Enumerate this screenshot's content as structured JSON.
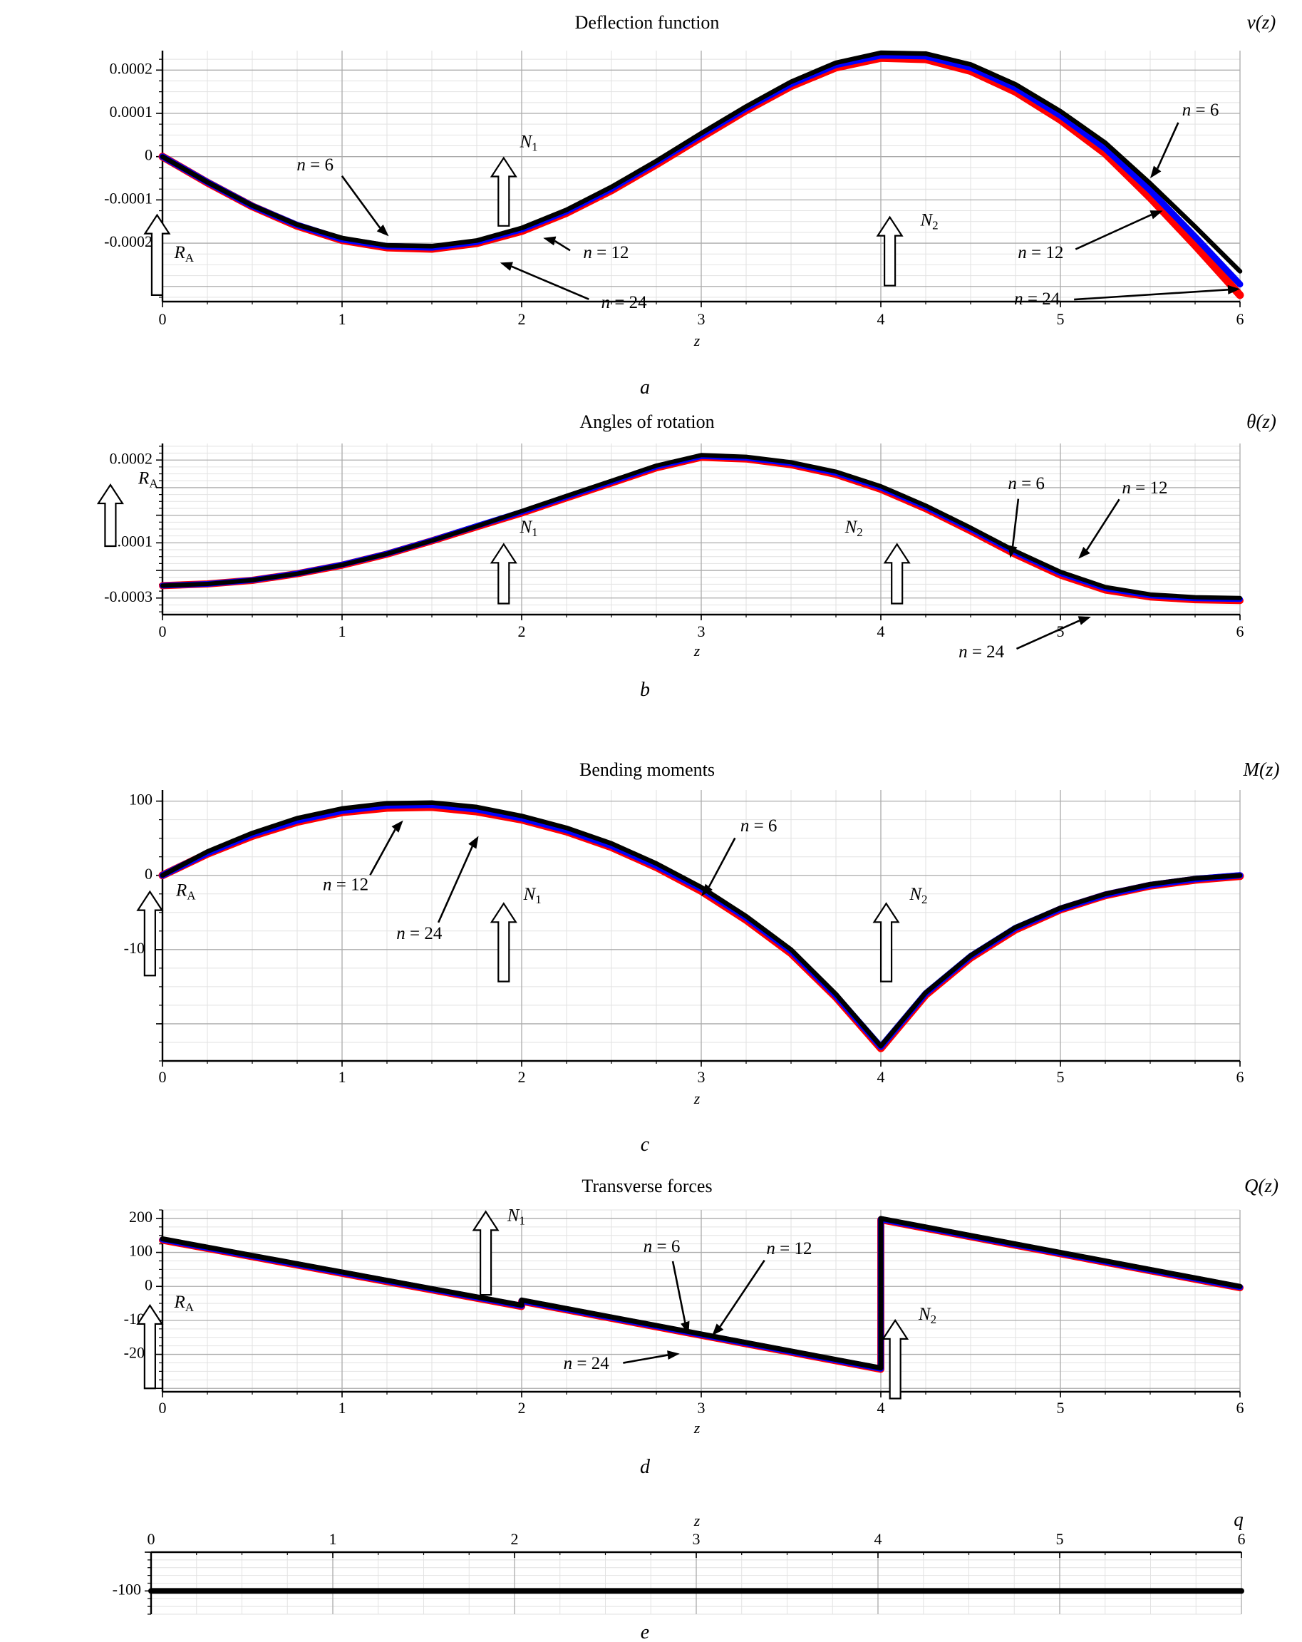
{
  "page": {
    "background": "#ffffff"
  },
  "chart_data": [
    {
      "id": "a",
      "type": "line",
      "title": "Deflection function",
      "fn_label": "v(z)",
      "sub_label": "a",
      "xlabel": "z",
      "xlim": [
        0,
        6
      ],
      "ylim": [
        -0.000335,
        0.000245
      ],
      "xticks": [
        0,
        1,
        2,
        3,
        4,
        5,
        6
      ],
      "yticks": [
        {
          "v": 0.0002,
          "label": "0.0002"
        },
        {
          "v": 0.0001,
          "label": "0.0001"
        },
        {
          "v": 0,
          "label": "0"
        },
        {
          "v": -0.0001,
          "label": "-0.0001"
        },
        {
          "v": -0.0002,
          "label": "-0.0002"
        }
      ],
      "grid": {
        "x_minor": 0.25,
        "x_major": 1,
        "y_minor": 2.5e-05,
        "y_major": 0.0001
      },
      "x": [
        0,
        0.25,
        0.5,
        0.75,
        1,
        1.25,
        1.5,
        1.75,
        2,
        2.25,
        2.5,
        2.75,
        3,
        3.25,
        3.5,
        3.75,
        4,
        4.25,
        4.5,
        4.75,
        5,
        5.25,
        5.5,
        5.75,
        6
      ],
      "series": [
        {
          "name": "n = 24",
          "color": "#ff0000",
          "width": 11,
          "y": [
            0,
            -6e-05,
            -0.000115,
            -0.00016,
            -0.000193,
            -0.00021,
            -0.000213,
            -0.0002,
            -0.000172,
            -0.00013,
            -7.8e-05,
            -1.8e-05,
            4.5e-05,
            0.000107,
            0.000163,
            0.000206,
            0.000228,
            0.000225,
            0.000198,
            0.00015,
            8.5e-05,
            7e-06,
            -9.5e-05,
            -0.000205,
            -0.00032
          ]
        },
        {
          "name": "n = 12",
          "color": "#0000ff",
          "width": 9,
          "y": [
            0,
            -5.9e-05,
            -0.000114,
            -0.000158,
            -0.000191,
            -0.000207,
            -0.00021,
            -0.000197,
            -0.000168,
            -0.000126,
            -7.4e-05,
            -1.3e-05,
            5e-05,
            0.000112,
            0.000168,
            0.000212,
            0.000234,
            0.000232,
            0.000206,
            0.000159,
            9.5e-05,
            1.9e-05,
            -7.8e-05,
            -0.000185,
            -0.000295
          ]
        },
        {
          "name": "n = 6",
          "color": "#000000",
          "width": 6.5,
          "y": [
            0,
            -5.9e-05,
            -0.000113,
            -0.000157,
            -0.000188,
            -0.000205,
            -0.000207,
            -0.000194,
            -0.000165,
            -0.000123,
            -7e-05,
            -1e-05,
            5.4e-05,
            0.000116,
            0.000173,
            0.000217,
            0.00024,
            0.000238,
            0.000213,
            0.000167,
            0.000105,
            3.2e-05,
            -6.2e-05,
            -0.000162,
            -0.000265
          ]
        }
      ],
      "force_arrows": [
        {
          "base": "R",
          "sub": "A",
          "x": -0.03,
          "y_bottom": -0.00032,
          "y_top": -0.000135,
          "lx": 0.12,
          "ly": -0.000225
        },
        {
          "base": "N",
          "sub": "1",
          "x": 1.9,
          "y_bottom": -0.00016,
          "y_top": -3e-06,
          "lx": 2.04,
          "ly": 3.2e-05
        },
        {
          "base": "N",
          "sub": "2",
          "x": 4.05,
          "y_bottom": -0.000298,
          "y_top": -0.00014,
          "lx": 4.27,
          "ly": -0.00015
        }
      ],
      "annotations": [
        {
          "text": "n = 6",
          "tx": 0.85,
          "ty": -2.2e-05,
          "ax": 1.26,
          "ay": -0.000184
        },
        {
          "text": "n = 12",
          "tx": 2.47,
          "ty": -0.000225,
          "ax": 2.12,
          "ay": -0.000188
        },
        {
          "text": "n = 24",
          "tx": 2.57,
          "ty": -0.00034,
          "ax": 1.88,
          "ay": -0.000245
        },
        {
          "text": "n = 6",
          "tx": 5.78,
          "ty": 0.000105,
          "ax": 5.5,
          "ay": -5e-05
        },
        {
          "text": "n = 12",
          "tx": 4.89,
          "ty": -0.000225,
          "ax": 5.57,
          "ay": -0.000125
        },
        {
          "text": "n = 24",
          "tx": 4.87,
          "ty": -0.000332,
          "ax": 6.0,
          "ay": -0.000306
        }
      ]
    },
    {
      "id": "b",
      "type": "line",
      "title": "Angles of rotation",
      "fn_label": "θ(z)",
      "sub_label": "b",
      "xlabel": "z",
      "xlim": [
        0,
        6
      ],
      "ylim": [
        -0.00036,
        0.00026
      ],
      "xticks": [
        0,
        1,
        2,
        3,
        4,
        5,
        6
      ],
      "yticks": [
        {
          "v": 0.0002,
          "label": "0.0002"
        },
        {
          "v": -0.0001,
          "label": "-0.0001"
        },
        {
          "v": -0.0003,
          "label": "-0.0003"
        }
      ],
      "grid": {
        "x_minor": 0.25,
        "x_major": 1,
        "y_minor": 2.5e-05,
        "y_major": 0.0001
      },
      "x": [
        0,
        0.25,
        0.5,
        0.75,
        1,
        1.25,
        1.5,
        1.75,
        2,
        2.25,
        2.5,
        2.75,
        3,
        3.25,
        3.5,
        3.75,
        4,
        4.25,
        4.5,
        4.75,
        5,
        5.25,
        5.5,
        5.75,
        6
      ],
      "series": [
        {
          "name": "n = 24",
          "color": "#ff0000",
          "width": 10,
          "y": [
            -0.000255,
            -0.000249,
            -0.000236,
            -0.000212,
            -0.000181,
            -0.000141,
            -9.3e-05,
            -4.2e-05,
            8e-06,
            6.3e-05,
            0.000117,
            0.000172,
            0.00021,
            0.000204,
            0.000183,
            0.000148,
            9.4e-05,
            2.4e-05,
            -5.7e-05,
            -0.000142,
            -0.000217,
            -0.000271,
            -0.000296,
            -0.000306,
            -0.000309
          ]
        },
        {
          "name": "n = 12",
          "color": "#0000ff",
          "width": 8,
          "y": [
            -0.000255,
            -0.000249,
            -0.000235,
            -0.000211,
            -0.000179,
            -0.000139,
            -9.1e-05,
            -3.9e-05,
            1.2e-05,
            6.7e-05,
            0.000121,
            0.000176,
            0.000214,
            0.000208,
            0.000188,
            0.000153,
            0.0001,
            3e-05,
            -5e-05,
            -0.000135,
            -0.00021,
            -0.000265,
            -0.000291,
            -0.000301,
            -0.000304
          ]
        },
        {
          "name": "n = 6",
          "color": "#000000",
          "width": 6,
          "y": [
            -0.000255,
            -0.000249,
            -0.000235,
            -0.000212,
            -0.00018,
            -0.00014,
            -9.2e-05,
            -4e-05,
            1.5e-05,
            7e-05,
            0.000125,
            0.00018,
            0.000218,
            0.000212,
            0.000192,
            0.000158,
            0.000105,
            3.5e-05,
            -4.5e-05,
            -0.00013,
            -0.000205,
            -0.00026,
            -0.000287,
            -0.000297,
            -0.0003
          ]
        }
      ],
      "force_arrows": [
        {
          "base": "R",
          "sub": "A",
          "x": -0.29,
          "y_bottom": -0.000112,
          "y_top": 0.00011,
          "lx": -0.08,
          "ly": 0.00013
        },
        {
          "base": "N",
          "sub": "1",
          "x": 1.9,
          "y_bottom": -0.00032,
          "y_top": -0.000105,
          "lx": 2.04,
          "ly": -4.8e-05
        },
        {
          "base": "N",
          "sub": "2",
          "x": 4.09,
          "y_bottom": -0.00032,
          "y_top": -0.000105,
          "lx": 3.85,
          "ly": -4.8e-05
        }
      ],
      "annotations": [
        {
          "text": "n = 6",
          "tx": 4.81,
          "ty": 0.00011,
          "ax": 4.72,
          "ay": -0.000155
        },
        {
          "text": "n = 12",
          "tx": 5.47,
          "ty": 9.5e-05,
          "ax": 5.1,
          "ay": -0.000158
        },
        {
          "text": "n = 24",
          "tx": 4.56,
          "ty": -0.0005,
          "ax": 5.17,
          "ay": -0.000368
        }
      ]
    },
    {
      "id": "c",
      "type": "line",
      "title": "Bending moments",
      "fn_label": "M(z)",
      "sub_label": "c",
      "xlabel": "z",
      "xlim": [
        0,
        6
      ],
      "ylim": [
        -250,
        115
      ],
      "xticks": [
        0,
        1,
        2,
        3,
        4,
        5,
        6
      ],
      "yticks": [
        {
          "v": 100,
          "label": "100"
        },
        {
          "v": 0,
          "label": "0"
        },
        {
          "v": -100,
          "label": "-100"
        }
      ],
      "grid": {
        "x_minor": 0.25,
        "x_major": 1,
        "y_minor": 25,
        "y_major": 100
      },
      "x": [
        0,
        0.25,
        0.5,
        0.75,
        1,
        1.25,
        1.5,
        1.75,
        2,
        2.25,
        2.5,
        2.75,
        3,
        3.25,
        3.5,
        3.75,
        4,
        4.25,
        4.5,
        4.75,
        5,
        5.25,
        5.5,
        5.75,
        6
      ],
      "series": [
        {
          "name": "n = 24",
          "color": "#ff0000",
          "width": 11,
          "y": [
            0,
            29,
            53,
            72,
            85,
            91,
            92,
            86,
            75,
            59,
            38,
            11,
            -21,
            -60,
            -105,
            -164,
            -233,
            -161,
            -111,
            -73,
            -46,
            -27,
            -14,
            -6,
            -1
          ]
        },
        {
          "name": "n = 12",
          "color": "#0000ff",
          "width": 9,
          "y": [
            0,
            30,
            55,
            74,
            87,
            94,
            95,
            89,
            77,
            61,
            40,
            13,
            -18,
            -57,
            -102,
            -162,
            -231,
            -159,
            -109,
            -71,
            -45,
            -26,
            -13,
            -5,
            0
          ]
        },
        {
          "name": "n = 6",
          "color": "#000000",
          "width": 6.5,
          "y": [
            0,
            32,
            57,
            77,
            90,
            97,
            98,
            92,
            80,
            64,
            43,
            16,
            -16,
            -55,
            -100,
            -160,
            -230,
            -158,
            -108,
            -70,
            -44,
            -25,
            -12,
            -4,
            0
          ]
        }
      ],
      "force_arrows": [
        {
          "base": "R",
          "sub": "A",
          "x": -0.07,
          "y_bottom": -135,
          "y_top": -22,
          "lx": 0.13,
          "ly": -22
        },
        {
          "base": "N",
          "sub": "1",
          "x": 1.9,
          "y_bottom": -143,
          "y_top": -38,
          "lx": 2.06,
          "ly": -27
        },
        {
          "base": "N",
          "sub": "2",
          "x": 4.03,
          "y_bottom": -143,
          "y_top": -38,
          "lx": 4.21,
          "ly": -27
        }
      ],
      "annotations": [
        {
          "text": "n = 12",
          "tx": 1.02,
          "ty": -14,
          "ax": 1.34,
          "ay": 74
        },
        {
          "text": "n = 24",
          "tx": 1.43,
          "ty": -80,
          "ax": 1.76,
          "ay": 53
        },
        {
          "text": "n = 6",
          "tx": 3.32,
          "ty": 65,
          "ax": 3.0,
          "ay": -28
        }
      ]
    },
    {
      "id": "d",
      "type": "line",
      "title": "Transverse forces",
      "fn_label": "Q(z)",
      "sub_label": "d",
      "xlabel": "z",
      "xlim": [
        0,
        6
      ],
      "ylim": [
        -310,
        225
      ],
      "xticks": [
        0,
        1,
        2,
        3,
        4,
        5,
        6
      ],
      "yticks": [
        {
          "v": 200,
          "label": "200"
        },
        {
          "v": 100,
          "label": "100"
        },
        {
          "v": 0,
          "label": "0"
        },
        {
          "v": -100,
          "label": "-100"
        },
        {
          "v": -200,
          "label": "-200"
        }
      ],
      "grid": {
        "x_minor": 0.25,
        "x_major": 1,
        "y_minor": 25,
        "y_major": 100
      },
      "x": [
        0,
        2,
        2,
        4,
        4,
        6
      ],
      "series": [
        {
          "name": "n = 24",
          "color": "#ff0000",
          "width": 10,
          "y": [
            136,
            -59,
            -44,
            -244,
            196,
            -4
          ]
        },
        {
          "name": "n = 12",
          "color": "#0000ff",
          "width": 8.5,
          "y": [
            138,
            -57,
            -42,
            -242,
            198,
            -2
          ]
        },
        {
          "name": "n = 6",
          "color": "#000000",
          "width": 7,
          "y": [
            140,
            -55,
            -40,
            -240,
            200,
            0
          ]
        }
      ],
      "force_arrows": [
        {
          "base": "R",
          "sub": "A",
          "x": -0.07,
          "y_bottom": -300,
          "y_top": -56,
          "lx": 0.12,
          "ly": -50
        },
        {
          "base": "N",
          "sub": "1",
          "x": 1.8,
          "y_bottom": -25,
          "y_top": 220,
          "lx": 1.97,
          "ly": 205
        },
        {
          "base": "N",
          "sub": "2",
          "x": 4.08,
          "y_bottom": -330,
          "y_top": -100,
          "lx": 4.26,
          "ly": -85
        }
      ],
      "annotations": [
        {
          "text": "n = 6",
          "tx": 2.78,
          "ty": 114,
          "ax": 2.93,
          "ay": -140
        },
        {
          "text": "n = 12",
          "tx": 3.49,
          "ty": 108,
          "ax": 3.06,
          "ay": -145
        },
        {
          "text": "n = 24",
          "tx": 2.36,
          "ty": -230,
          "ax": 2.88,
          "ay": -198
        }
      ]
    },
    {
      "id": "e",
      "type": "line",
      "title": "",
      "fn_label": "q",
      "sub_label": "e",
      "xlabel": "z",
      "xlim": [
        0,
        6
      ],
      "ylim": [
        -160,
        0
      ],
      "xticks": [
        0,
        1,
        2,
        3,
        4,
        5,
        6
      ],
      "yticks": [
        {
          "v": -100,
          "label": "-100"
        }
      ],
      "grid": {
        "x_minor": 0.25,
        "x_major": 1,
        "y_minor": 20,
        "y_major": 100
      },
      "x": [
        0,
        6
      ],
      "series": [
        {
          "name": "q",
          "color": "#000000",
          "width": 8,
          "y": [
            -100,
            -100
          ]
        }
      ],
      "force_arrows": [],
      "annotations": []
    }
  ]
}
